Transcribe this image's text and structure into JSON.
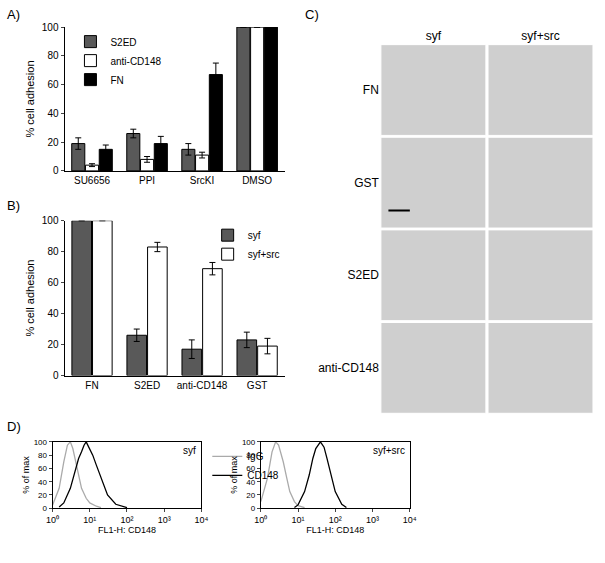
{
  "chart_data": [
    {
      "type": "bar",
      "title": "A)",
      "ylabel": "% cell adhesion",
      "categories": [
        "SU6656",
        "PPI",
        "SrcKI",
        "DMSO"
      ],
      "series": [
        {
          "name": "S2ED",
          "color": "#595959",
          "values": [
            19,
            26,
            15,
            100
          ],
          "errors": [
            4,
            3,
            4,
            0
          ]
        },
        {
          "name": "anti-CD148",
          "color": "#ffffff",
          "values": [
            4,
            8,
            11,
            100
          ],
          "errors": [
            1,
            2,
            2,
            0
          ]
        },
        {
          "name": "FN",
          "color": "#000000",
          "values": [
            15,
            19,
            67,
            100
          ],
          "errors": [
            3,
            5,
            8,
            0
          ]
        }
      ],
      "ylim": [
        0,
        100
      ],
      "yticks": [
        0,
        20,
        40,
        60,
        80,
        100
      ],
      "grid": false,
      "legend": "upper left"
    },
    {
      "type": "bar",
      "title": "B)",
      "ylabel": "% cell adhesion",
      "categories": [
        "FN",
        "S2ED",
        "anti-CD148",
        "GST"
      ],
      "series": [
        {
          "name": "syf",
          "color": "#595959",
          "values": [
            100,
            26,
            17,
            23
          ],
          "errors": [
            0,
            4,
            6,
            5
          ]
        },
        {
          "name": "syf+src",
          "color": "#ffffff",
          "values": [
            100,
            83,
            69,
            19
          ],
          "errors": [
            0,
            3,
            4,
            5
          ]
        }
      ],
      "ylim": [
        0,
        100
      ],
      "yticks": [
        0,
        20,
        40,
        60,
        80,
        100
      ],
      "grid": false,
      "legend": "upper right"
    },
    {
      "type": "image_grid",
      "title": "C)",
      "columns": [
        "syf",
        "syf+src"
      ],
      "rows": [
        "FN",
        "GST",
        "S2ED",
        "anti-CD148"
      ]
    },
    {
      "type": "line",
      "title": "D)",
      "subtitle": "syf",
      "xlabel": "FL1-H: CD148",
      "ylabel": "% of max",
      "log": "x",
      "xlim": [
        1,
        10000
      ],
      "xticks": [
        {
          "value": 1,
          "label": "10⁰"
        },
        {
          "value": 10,
          "label": "10¹"
        },
        {
          "value": 100,
          "label": "10²"
        },
        {
          "value": 1000,
          "label": "10³"
        },
        {
          "value": 10000,
          "label": "10⁴"
        }
      ],
      "ylim": [
        0,
        100
      ],
      "yticks": [
        0,
        20,
        40,
        60,
        80,
        100
      ],
      "grid": false,
      "legend": "right",
      "series": [
        {
          "name": "IgG",
          "color": "#aaaaaa",
          "x": [
            1,
            1.5,
            2,
            2.5,
            3,
            3.5,
            4,
            5,
            6,
            8,
            10,
            15,
            20
          ],
          "values": [
            5,
            30,
            70,
            95,
            100,
            90,
            75,
            50,
            30,
            15,
            8,
            3,
            1
          ]
        },
        {
          "name": "CD148",
          "color": "#000000",
          "x": [
            1.5,
            2,
            3,
            4,
            5,
            6,
            7,
            8,
            10,
            12,
            15,
            20,
            30,
            50,
            100
          ],
          "values": [
            2,
            8,
            30,
            55,
            75,
            85,
            95,
            100,
            90,
            80,
            65,
            45,
            20,
            6,
            1
          ]
        }
      ]
    },
    {
      "type": "line",
      "subtitle": "syf+src",
      "xlabel": "FL1-H: CD148",
      "ylabel": "% of max",
      "log": "x",
      "xlim": [
        1,
        10000
      ],
      "xticks": [
        {
          "value": 1,
          "label": "10⁰"
        },
        {
          "value": 10,
          "label": "10¹"
        },
        {
          "value": 100,
          "label": "10²"
        },
        {
          "value": 1000,
          "label": "10³"
        },
        {
          "value": 10000,
          "label": "10⁴"
        }
      ],
      "ylim": [
        0,
        100
      ],
      "yticks": [
        0,
        20,
        40,
        60,
        80,
        100
      ],
      "grid": false,
      "series": [
        {
          "name": "IgG",
          "color": "#aaaaaa",
          "x": [
            1,
            1.5,
            2,
            2.5,
            3,
            4,
            5,
            6,
            8,
            10,
            15
          ],
          "values": [
            10,
            45,
            85,
            100,
            95,
            70,
            45,
            25,
            10,
            4,
            1
          ]
        },
        {
          "name": "CD148",
          "color": "#000000",
          "x": [
            8,
            10,
            15,
            20,
            25,
            30,
            40,
            50,
            60,
            80,
            100,
            150,
            200
          ],
          "values": [
            1,
            5,
            25,
            50,
            75,
            90,
            100,
            92,
            75,
            45,
            25,
            6,
            1
          ]
        }
      ]
    }
  ]
}
